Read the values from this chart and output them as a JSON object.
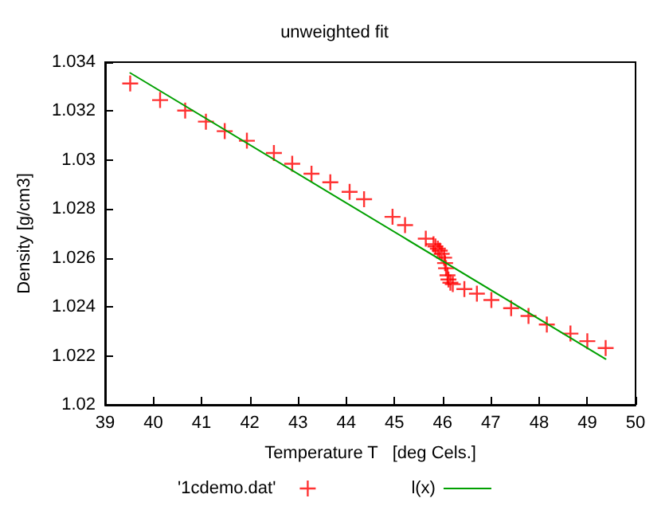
{
  "chart_data": {
    "type": "scatter",
    "title": "unweighted fit",
    "xlabel": "Temperature T   [deg Cels.]",
    "ylabel": "Density [g/cm3]",
    "xlim": [
      39,
      50
    ],
    "xticks": [
      39,
      40,
      41,
      42,
      43,
      44,
      45,
      46,
      47,
      48,
      49,
      50
    ],
    "ylim": [
      1.02,
      1.034
    ],
    "yticks": [
      1.02,
      1.022,
      1.024,
      1.026,
      1.028,
      1.03,
      1.032,
      1.034
    ],
    "grid": false,
    "legend": "bottom",
    "series": [
      {
        "name": "'1cdemo.dat'",
        "type": "scatter",
        "marker": "cross",
        "color": "#ff0000",
        "x": [
          39.52,
          40.14,
          40.66,
          41.09,
          41.48,
          41.94,
          42.5,
          42.88,
          43.28,
          43.67,
          44.07,
          44.37,
          44.96,
          45.22,
          45.65,
          45.81,
          45.85,
          45.9,
          45.94,
          45.98,
          46.03,
          46.05,
          46.07,
          46.1,
          46.12,
          46.16,
          46.21,
          46.45,
          46.71,
          47.01,
          47.42,
          47.78,
          48.16,
          48.65,
          49.0,
          49.38
        ],
        "values": [
          1.03313,
          1.03245,
          1.03202,
          1.03157,
          1.03118,
          1.03079,
          1.03029,
          1.02985,
          1.02944,
          1.02909,
          1.0287,
          1.0284,
          1.02768,
          1.02734,
          1.02679,
          1.02656,
          1.02647,
          1.02638,
          1.0263,
          1.02617,
          1.02601,
          1.02579,
          1.02558,
          1.02529,
          1.02512,
          1.02499,
          1.02493,
          1.02473,
          1.02454,
          1.02428,
          1.02395,
          1.02363,
          1.02328,
          1.02291,
          1.0226,
          1.02232
        ]
      },
      {
        "name": "l(x)",
        "type": "line",
        "marker": "none",
        "color": "#00a000",
        "x": [
          39.52,
          49.38
        ],
        "values": [
          1.03356,
          1.02187
        ]
      }
    ]
  }
}
